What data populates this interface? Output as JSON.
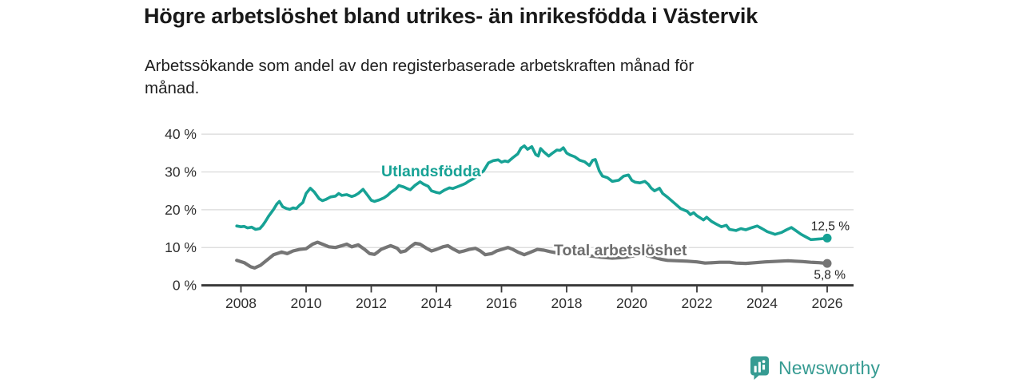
{
  "header": {
    "title": "Högre arbetslöshet bland utrikes- än inrikesfödda i Västervik",
    "subtitle": "Arbetssökande som andel av den registerbaserade arbetskraften månad för månad.",
    "subtitle_lines": [
      "Arbetssökande som andel av den registerbaserade arbetskraften månad för",
      "månad."
    ]
  },
  "chart_data": {
    "type": "line",
    "unit": "%",
    "grid": true,
    "x_axis": {
      "ticks": [
        2008,
        2010,
        2012,
        2014,
        2016,
        2018,
        2020,
        2022,
        2024,
        2026
      ],
      "range": [
        2007.87,
        2026.6
      ]
    },
    "y_axis": {
      "ticks": [
        40,
        30,
        20,
        10,
        0
      ],
      "min": 0,
      "max": 40,
      "tick_suffix": " %"
    },
    "series": [
      {
        "name": "Utlandsfödda",
        "color": "#17a295",
        "end_label": "12,5 %",
        "end_value": 12.5,
        "points": [
          [
            2007.87,
            15.7
          ],
          [
            2008.0,
            15.5
          ],
          [
            2008.1,
            15.6
          ],
          [
            2008.2,
            15.2
          ],
          [
            2008.33,
            15.4
          ],
          [
            2008.45,
            14.8
          ],
          [
            2008.58,
            15.0
          ],
          [
            2008.67,
            15.9
          ],
          [
            2008.75,
            16.9
          ],
          [
            2008.85,
            18.3
          ],
          [
            2009.0,
            20.1
          ],
          [
            2009.1,
            21.5
          ],
          [
            2009.18,
            22.2
          ],
          [
            2009.28,
            20.8
          ],
          [
            2009.4,
            20.3
          ],
          [
            2009.5,
            20.1
          ],
          [
            2009.6,
            20.5
          ],
          [
            2009.7,
            20.3
          ],
          [
            2009.8,
            21.2
          ],
          [
            2009.9,
            21.9
          ],
          [
            2010.0,
            24.3
          ],
          [
            2010.13,
            25.7
          ],
          [
            2010.25,
            24.7
          ],
          [
            2010.4,
            22.9
          ],
          [
            2010.5,
            22.4
          ],
          [
            2010.6,
            22.7
          ],
          [
            2010.75,
            23.4
          ],
          [
            2010.9,
            23.6
          ],
          [
            2011.0,
            24.3
          ],
          [
            2011.1,
            23.8
          ],
          [
            2011.25,
            24.0
          ],
          [
            2011.4,
            23.5
          ],
          [
            2011.5,
            23.8
          ],
          [
            2011.6,
            24.3
          ],
          [
            2011.75,
            25.4
          ],
          [
            2011.9,
            23.7
          ],
          [
            2012.0,
            22.5
          ],
          [
            2012.1,
            22.2
          ],
          [
            2012.25,
            22.6
          ],
          [
            2012.4,
            23.2
          ],
          [
            2012.5,
            23.8
          ],
          [
            2012.6,
            24.6
          ],
          [
            2012.75,
            25.5
          ],
          [
            2012.85,
            26.4
          ],
          [
            2013.0,
            26.0
          ],
          [
            2013.1,
            25.6
          ],
          [
            2013.2,
            25.3
          ],
          [
            2013.35,
            26.5
          ],
          [
            2013.5,
            27.4
          ],
          [
            2013.6,
            26.8
          ],
          [
            2013.75,
            26.2
          ],
          [
            2013.85,
            25.0
          ],
          [
            2014.0,
            24.6
          ],
          [
            2014.1,
            24.4
          ],
          [
            2014.25,
            25.2
          ],
          [
            2014.4,
            25.8
          ],
          [
            2014.5,
            25.6
          ],
          [
            2014.65,
            26.1
          ],
          [
            2014.8,
            26.6
          ],
          [
            2014.9,
            27.0
          ],
          [
            2015.0,
            27.6
          ],
          [
            2015.15,
            28.3
          ],
          [
            2015.3,
            29.2
          ],
          [
            2015.45,
            30.3
          ],
          [
            2015.6,
            32.4
          ],
          [
            2015.75,
            33.0
          ],
          [
            2015.9,
            33.2
          ],
          [
            2016.0,
            32.6
          ],
          [
            2016.1,
            32.9
          ],
          [
            2016.2,
            32.7
          ],
          [
            2016.35,
            33.8
          ],
          [
            2016.5,
            34.8
          ],
          [
            2016.6,
            36.3
          ],
          [
            2016.7,
            36.9
          ],
          [
            2016.8,
            36.0
          ],
          [
            2016.93,
            36.7
          ],
          [
            2017.05,
            34.6
          ],
          [
            2017.13,
            34.2
          ],
          [
            2017.2,
            36.2
          ],
          [
            2017.3,
            35.3
          ],
          [
            2017.45,
            34.2
          ],
          [
            2017.55,
            34.9
          ],
          [
            2017.7,
            35.8
          ],
          [
            2017.8,
            35.7
          ],
          [
            2017.9,
            36.4
          ],
          [
            2018.0,
            35.0
          ],
          [
            2018.1,
            34.5
          ],
          [
            2018.25,
            34.0
          ],
          [
            2018.4,
            33.1
          ],
          [
            2018.55,
            32.7
          ],
          [
            2018.7,
            31.7
          ],
          [
            2018.8,
            33.1
          ],
          [
            2018.88,
            33.3
          ],
          [
            2019.0,
            30.3
          ],
          [
            2019.1,
            28.9
          ],
          [
            2019.25,
            28.5
          ],
          [
            2019.4,
            27.5
          ],
          [
            2019.6,
            27.8
          ],
          [
            2019.75,
            28.9
          ],
          [
            2019.9,
            29.2
          ],
          [
            2020.0,
            27.8
          ],
          [
            2020.1,
            27.3
          ],
          [
            2020.25,
            27.1
          ],
          [
            2020.4,
            27.5
          ],
          [
            2020.5,
            26.8
          ],
          [
            2020.6,
            25.7
          ],
          [
            2020.7,
            25.0
          ],
          [
            2020.85,
            25.7
          ],
          [
            2020.95,
            24.3
          ],
          [
            2021.1,
            23.3
          ],
          [
            2021.3,
            21.8
          ],
          [
            2021.5,
            20.3
          ],
          [
            2021.7,
            19.6
          ],
          [
            2021.8,
            18.7
          ],
          [
            2021.9,
            19.2
          ],
          [
            2022.0,
            18.4
          ],
          [
            2022.2,
            17.3
          ],
          [
            2022.3,
            18.0
          ],
          [
            2022.45,
            16.9
          ],
          [
            2022.6,
            16.2
          ],
          [
            2022.75,
            15.5
          ],
          [
            2022.9,
            15.9
          ],
          [
            2023.0,
            14.8
          ],
          [
            2023.2,
            14.5
          ],
          [
            2023.35,
            15.0
          ],
          [
            2023.5,
            14.7
          ],
          [
            2023.7,
            15.3
          ],
          [
            2023.85,
            15.7
          ],
          [
            2024.0,
            15.0
          ],
          [
            2024.16,
            14.2
          ],
          [
            2024.4,
            13.5
          ],
          [
            2024.6,
            14.0
          ],
          [
            2024.75,
            14.7
          ],
          [
            2024.9,
            15.3
          ],
          [
            2025.05,
            14.4
          ],
          [
            2025.2,
            13.5
          ],
          [
            2025.35,
            12.8
          ],
          [
            2025.5,
            12.1
          ],
          [
            2025.65,
            12.2
          ],
          [
            2025.8,
            12.3
          ],
          [
            2026.0,
            12.5
          ]
        ]
      },
      {
        "name": "Total arbetslöshet",
        "color": "#757575",
        "label_color": "#6d6d6d",
        "end_label": "5,8 %",
        "end_value": 5.8,
        "points": [
          [
            2007.87,
            6.6
          ],
          [
            2008.1,
            6.0
          ],
          [
            2008.3,
            4.9
          ],
          [
            2008.42,
            4.6
          ],
          [
            2008.6,
            5.3
          ],
          [
            2008.8,
            6.7
          ],
          [
            2009.0,
            8.1
          ],
          [
            2009.25,
            8.8
          ],
          [
            2009.42,
            8.4
          ],
          [
            2009.6,
            9.1
          ],
          [
            2009.8,
            9.5
          ],
          [
            2010.0,
            9.7
          ],
          [
            2010.2,
            10.9
          ],
          [
            2010.35,
            11.4
          ],
          [
            2010.5,
            10.9
          ],
          [
            2010.7,
            10.2
          ],
          [
            2010.9,
            10.0
          ],
          [
            2011.1,
            10.5
          ],
          [
            2011.25,
            10.9
          ],
          [
            2011.4,
            10.2
          ],
          [
            2011.6,
            10.7
          ],
          [
            2011.8,
            9.5
          ],
          [
            2011.95,
            8.4
          ],
          [
            2012.1,
            8.2
          ],
          [
            2012.2,
            8.8
          ],
          [
            2012.3,
            9.5
          ],
          [
            2012.5,
            10.2
          ],
          [
            2012.6,
            10.5
          ],
          [
            2012.8,
            9.8
          ],
          [
            2012.9,
            8.8
          ],
          [
            2013.05,
            9.1
          ],
          [
            2013.2,
            10.2
          ],
          [
            2013.35,
            11.1
          ],
          [
            2013.5,
            10.9
          ],
          [
            2013.7,
            9.8
          ],
          [
            2013.85,
            9.1
          ],
          [
            2014.0,
            9.5
          ],
          [
            2014.2,
            10.2
          ],
          [
            2014.35,
            10.5
          ],
          [
            2014.5,
            9.7
          ],
          [
            2014.7,
            8.8
          ],
          [
            2014.85,
            9.1
          ],
          [
            2015.0,
            9.5
          ],
          [
            2015.2,
            9.8
          ],
          [
            2015.35,
            9.1
          ],
          [
            2015.5,
            8.1
          ],
          [
            2015.7,
            8.4
          ],
          [
            2015.85,
            9.1
          ],
          [
            2016.0,
            9.5
          ],
          [
            2016.2,
            10.0
          ],
          [
            2016.35,
            9.5
          ],
          [
            2016.5,
            8.8
          ],
          [
            2016.7,
            8.1
          ],
          [
            2016.9,
            8.8
          ],
          [
            2017.1,
            9.5
          ],
          [
            2017.3,
            9.3
          ],
          [
            2017.5,
            8.9
          ],
          [
            2017.7,
            8.6
          ],
          [
            2018.0,
            8.2
          ],
          [
            2018.3,
            8.5
          ],
          [
            2018.6,
            7.9
          ],
          [
            2019.0,
            7.5
          ],
          [
            2019.4,
            7.2
          ],
          [
            2019.8,
            7.4
          ],
          [
            2020.1,
            7.9
          ],
          [
            2020.35,
            8.2
          ],
          [
            2020.6,
            7.6
          ],
          [
            2020.9,
            6.9
          ],
          [
            2021.1,
            6.6
          ],
          [
            2021.4,
            6.5
          ],
          [
            2021.7,
            6.4
          ],
          [
            2022.0,
            6.2
          ],
          [
            2022.25,
            5.9
          ],
          [
            2022.5,
            6.0
          ],
          [
            2022.7,
            6.1
          ],
          [
            2023.0,
            6.1
          ],
          [
            2023.2,
            5.9
          ],
          [
            2023.5,
            5.8
          ],
          [
            2023.8,
            6.0
          ],
          [
            2024.1,
            6.2
          ],
          [
            2024.3,
            6.3
          ],
          [
            2024.55,
            6.4
          ],
          [
            2024.8,
            6.5
          ],
          [
            2025.0,
            6.4
          ],
          [
            2025.25,
            6.3
          ],
          [
            2025.5,
            6.1
          ],
          [
            2025.75,
            6.0
          ],
          [
            2026.0,
            5.8
          ]
        ]
      }
    ]
  },
  "footer": {
    "brand": "Newsworthy",
    "brand_color": "#369b92"
  }
}
